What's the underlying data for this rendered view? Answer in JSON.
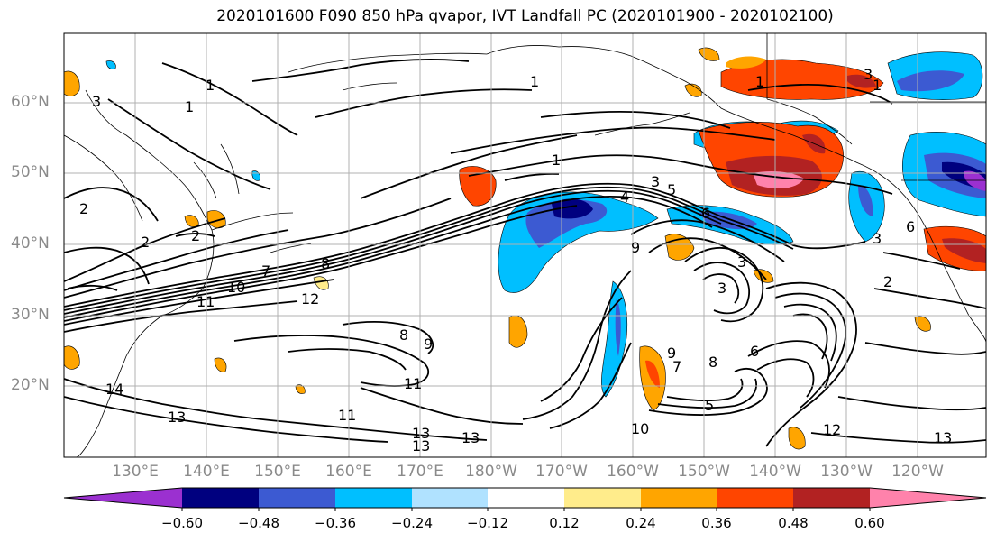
{
  "title": "2020101600 F090 850 hPa qvapor, IVT Landfall PC (2020101900 - 2020102100)",
  "latitude_labels": [
    "60°N",
    "50°N",
    "40°N",
    "30°N",
    "20°N"
  ],
  "longitude_labels": [
    "130°E",
    "140°E",
    "150°E",
    "160°E",
    "170°E",
    "180°W",
    "170°W",
    "160°W",
    "150°W",
    "140°W",
    "130°W",
    "120°W"
  ],
  "colorbar": {
    "tick_labels": [
      "−0.60",
      "−0.48",
      "−0.36",
      "−0.24",
      "−0.12",
      "0.12",
      "0.24",
      "0.36",
      "0.48",
      "0.60"
    ],
    "colors": [
      "#9b30d0",
      "#00007f",
      "#3c5ad2",
      "#00bfff",
      "#b0e2ff",
      "#ffffff",
      "#ffec8b",
      "#ffa500",
      "#ff4500",
      "#b22222",
      "#ff82ab"
    ]
  },
  "contour_labels": [
    "3",
    "1",
    "1",
    "1",
    "2",
    "2",
    "3",
    "7",
    "8",
    "10",
    "11",
    "12",
    "1",
    "4",
    "3",
    "5",
    "6",
    "9",
    "3",
    "3",
    "2",
    "6",
    "3",
    "1",
    "1",
    "8",
    "9",
    "11",
    "11",
    "13",
    "13",
    "13",
    "14",
    "13",
    "10",
    "9",
    "7",
    "8",
    "6",
    "5",
    "12",
    "13",
    "2"
  ]
}
